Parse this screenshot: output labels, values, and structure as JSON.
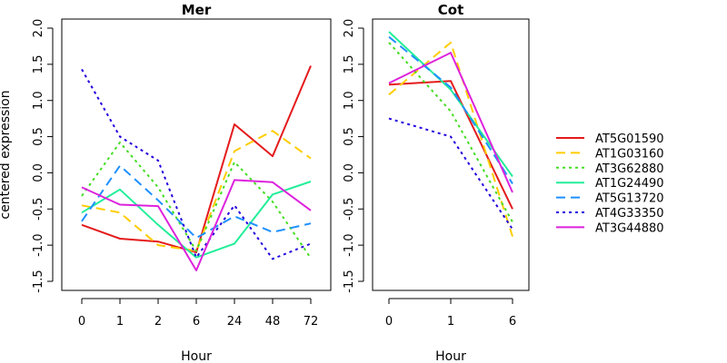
{
  "chart_data": [
    {
      "type": "line",
      "title": "Mer",
      "xlabel": "Hour",
      "ylabel": "centered expression",
      "categories": [
        "0",
        "1",
        "2",
        "6",
        "24",
        "48",
        "72"
      ],
      "ylim": [
        -1.5,
        2.0
      ],
      "yticks": [
        "-1.5",
        "-1.0",
        "-0.5",
        "0.0",
        "0.5",
        "1.0",
        "1.5",
        "2.0"
      ],
      "series": [
        {
          "name": "AT5G01590",
          "color": "#e41a1c",
          "dash": "solid",
          "values": [
            -0.72,
            -0.91,
            -0.95,
            -1.1,
            0.67,
            0.23,
            1.48
          ]
        },
        {
          "name": "AT1G03160",
          "color": "#ffcc00",
          "dash": "dashed",
          "values": [
            -0.45,
            -0.55,
            -1.0,
            -1.08,
            0.3,
            0.58,
            0.2
          ]
        },
        {
          "name": "AT3G62880",
          "color": "#44dd22",
          "dash": "dotted",
          "values": [
            -0.32,
            0.42,
            -0.2,
            -1.08,
            0.15,
            -0.4,
            -1.18
          ]
        },
        {
          "name": "AT1G24490",
          "color": "#22ee99",
          "dash": "solid",
          "values": [
            -0.55,
            -0.23,
            -0.72,
            -1.17,
            -0.98,
            -0.3,
            -0.12
          ]
        },
        {
          "name": "AT5G13720",
          "color": "#1e90ff",
          "dash": "dashed",
          "values": [
            -0.67,
            0.1,
            -0.38,
            -0.9,
            -0.6,
            -0.82,
            -0.7
          ]
        },
        {
          "name": "AT4G33350",
          "color": "#2200dd",
          "dash": "dotted",
          "values": [
            1.43,
            0.5,
            0.17,
            -1.17,
            -0.45,
            -1.19,
            -0.98
          ]
        },
        {
          "name": "AT3G44880",
          "color": "#dd22dd",
          "dash": "solid",
          "values": [
            -0.2,
            -0.44,
            -0.46,
            -1.35,
            -0.1,
            -0.13,
            -0.52
          ]
        }
      ]
    },
    {
      "type": "line",
      "title": "Cot",
      "xlabel": "Hour",
      "ylabel": "",
      "categories": [
        "0",
        "1",
        "6"
      ],
      "ylim": [
        -1.5,
        2.0
      ],
      "yticks": [
        "-1.5",
        "-1.0",
        "-0.5",
        "0.0",
        "0.5",
        "1.0",
        "1.5",
        "2.0"
      ],
      "series": [
        {
          "name": "AT5G01590",
          "color": "#e41a1c",
          "dash": "solid",
          "values": [
            1.22,
            1.27,
            -0.5
          ]
        },
        {
          "name": "AT1G03160",
          "color": "#ffcc00",
          "dash": "dashed",
          "values": [
            1.08,
            1.8,
            -0.88
          ]
        },
        {
          "name": "AT3G62880",
          "color": "#44dd22",
          "dash": "dotted",
          "values": [
            1.8,
            0.85,
            -0.68
          ]
        },
        {
          "name": "AT1G24490",
          "color": "#22ee99",
          "dash": "solid",
          "values": [
            1.95,
            1.15,
            -0.05
          ]
        },
        {
          "name": "AT5G13720",
          "color": "#1e90ff",
          "dash": "dashed",
          "values": [
            1.88,
            1.18,
            -0.15
          ]
        },
        {
          "name": "AT4G33350",
          "color": "#2200dd",
          "dash": "dotted",
          "values": [
            0.75,
            0.5,
            -0.78
          ]
        },
        {
          "name": "AT3G44880",
          "color": "#dd22dd",
          "dash": "solid",
          "values": [
            1.24,
            1.66,
            -0.27
          ]
        }
      ]
    }
  ],
  "legend": {
    "placement": "right",
    "items": [
      {
        "name": "AT5G01590",
        "color": "#e41a1c",
        "dash": "solid"
      },
      {
        "name": "AT1G03160",
        "color": "#ffcc00",
        "dash": "dashed"
      },
      {
        "name": "AT3G62880",
        "color": "#44dd22",
        "dash": "dotted"
      },
      {
        "name": "AT1G24490",
        "color": "#22ee99",
        "dash": "solid"
      },
      {
        "name": "AT5G13720",
        "color": "#1e90ff",
        "dash": "dashed"
      },
      {
        "name": "AT4G33350",
        "color": "#2200dd",
        "dash": "dotted"
      },
      {
        "name": "AT3G44880",
        "color": "#dd22dd",
        "dash": "solid"
      }
    ]
  }
}
